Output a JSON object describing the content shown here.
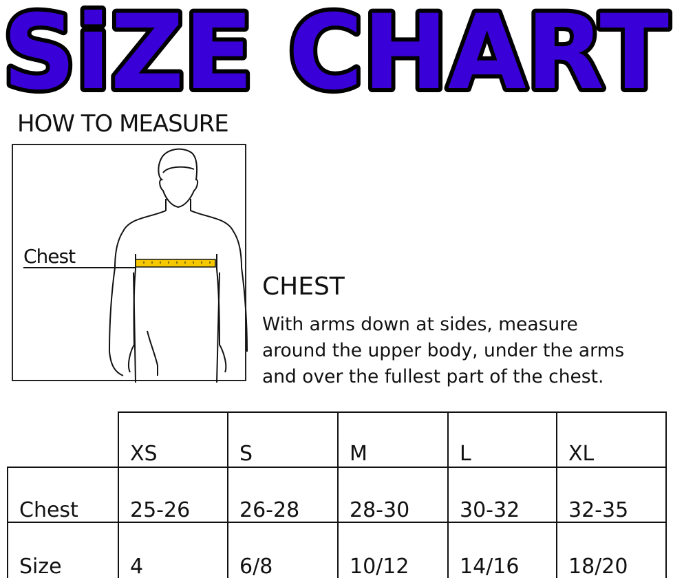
{
  "title": "SiZE CHART",
  "title_color": "#3a00d8",
  "how_to_measure": "HOW TO MEASURE",
  "figure": {
    "label": "Chest",
    "tape_color": "#f5c800"
  },
  "chest": {
    "heading": "CHEST",
    "lines": [
      "With arms down at sides, measure",
      "around the upper body, under the arms",
      "and over the fullest part of the chest."
    ]
  },
  "table": {
    "headers": [
      "XS",
      "S",
      "M",
      "L",
      "XL"
    ],
    "rows": [
      {
        "label": "Chest",
        "values": [
          "25-26",
          "26-28",
          "28-30",
          "30-32",
          "32-35"
        ]
      },
      {
        "label": "Size",
        "values": [
          "4",
          "6/8",
          "10/12",
          "14/16",
          "18/20"
        ]
      }
    ]
  }
}
